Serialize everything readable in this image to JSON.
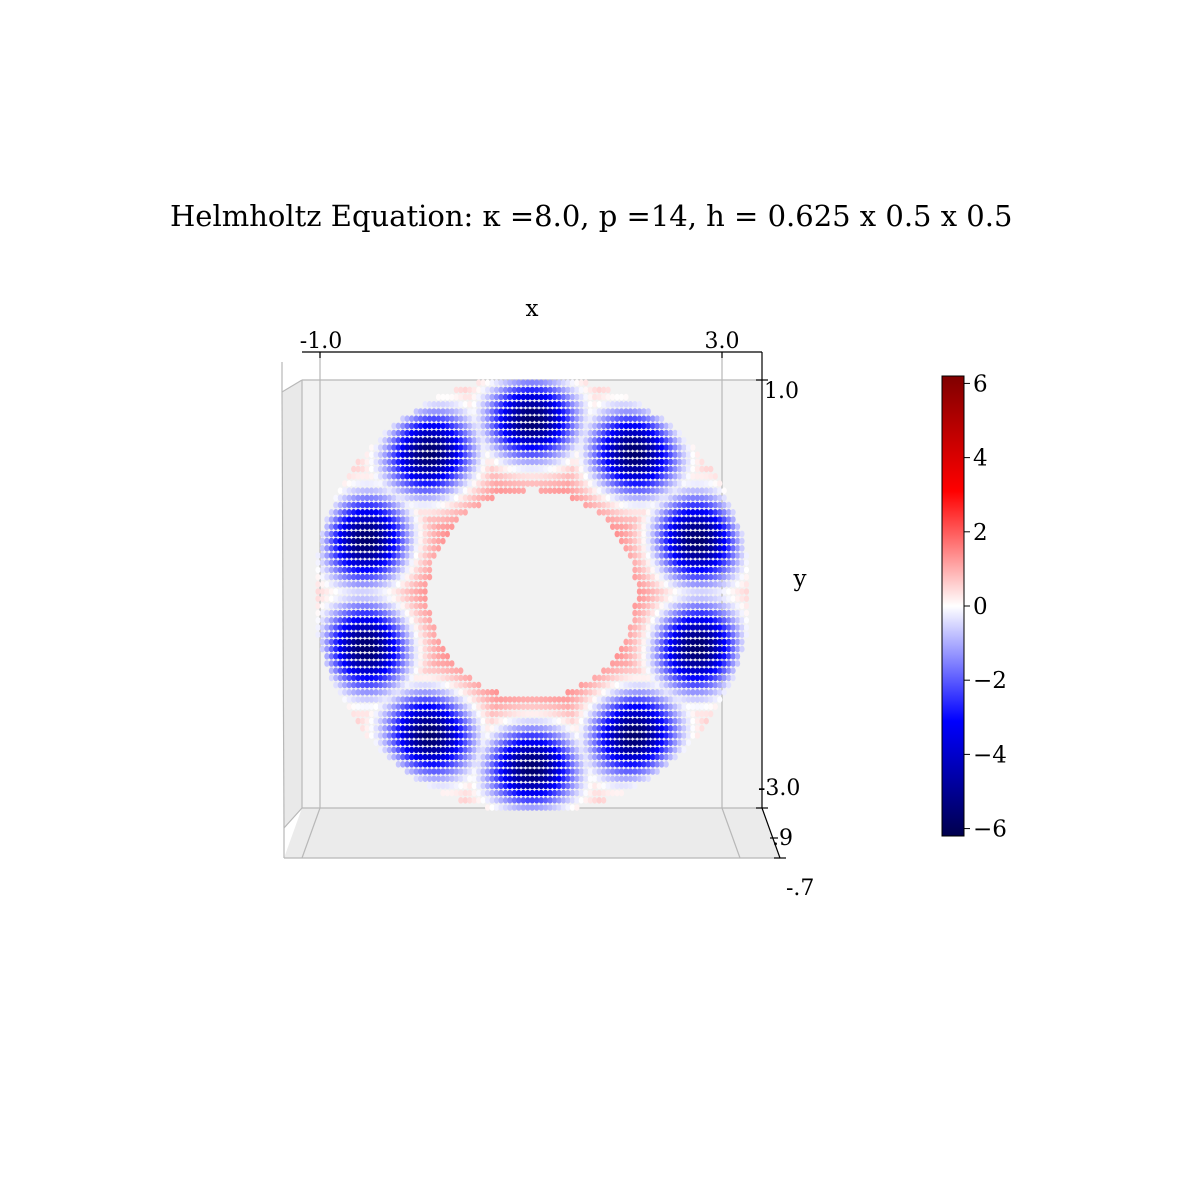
{
  "chart_data": {
    "type": "scatter",
    "title": "Helmholtz Equation: κ =8.0, p =14, h = 0.625 x 0.5 x 0.5",
    "xlabel": "x",
    "ylabel": "y",
    "x_ticks": [
      "-1.0",
      "3.0"
    ],
    "y_ticks": [
      "1.0",
      "-3.0"
    ],
    "z_ticks": [
      ".9",
      "-.7"
    ],
    "xlim": [
      -1.0,
      3.0
    ],
    "ylim": [
      -3.0,
      1.0
    ],
    "zlim": [
      -0.7,
      0.9
    ],
    "grid": true,
    "colormap": "seismic",
    "colorbar": {
      "range": [
        -6.2,
        6.2
      ],
      "ticks": [
        6,
        4,
        2,
        0,
        -2,
        -4,
        -6
      ],
      "tick_labels": [
        "6",
        "4",
        "2",
        "0",
        "−2",
        "−4",
        "−6"
      ],
      "colors": [
        "#00004d",
        "#0000ff",
        "#ffffff",
        "#ff0000",
        "#800000"
      ]
    },
    "annulus": {
      "center": [
        1.0,
        -1.0
      ],
      "inner_radius": 0.9,
      "outer_radius": 1.9,
      "negative_lobes": 10,
      "lobe_radius": 1.52,
      "lobe_peak": -6.0,
      "positive_ring_value": 1.5
    },
    "colors": {
      "pane": "#f2f2f2",
      "grid": "#b0b0b0"
    }
  }
}
